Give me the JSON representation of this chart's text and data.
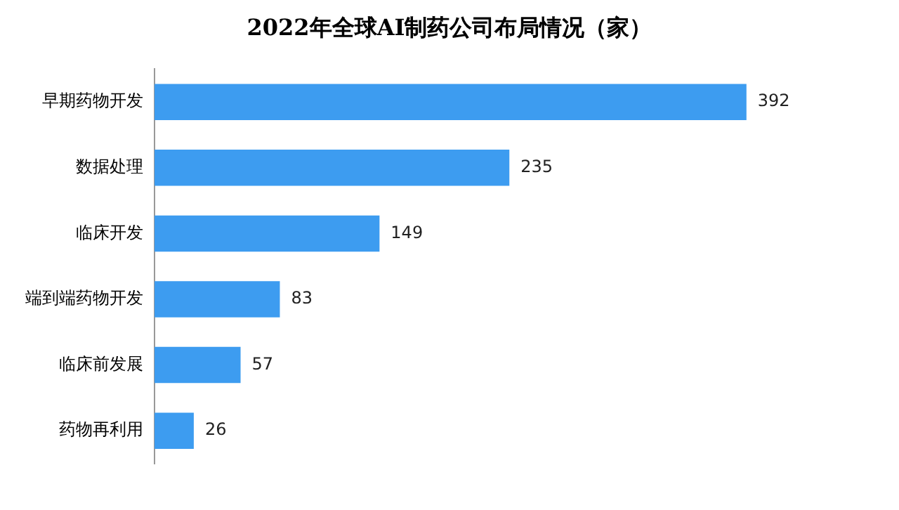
{
  "chart_data": {
    "type": "bar",
    "orientation": "horizontal",
    "title": "2022年全球AI制药公司布局情况（家）",
    "categories": [
      "早期药物开发",
      "数据处理",
      "临床开发",
      "端到端药物开发",
      "临床前发展",
      "药物再利用"
    ],
    "values": [
      392,
      235,
      149,
      83,
      57,
      26
    ],
    "color": "#3d9cf0",
    "data_labels": true
  }
}
